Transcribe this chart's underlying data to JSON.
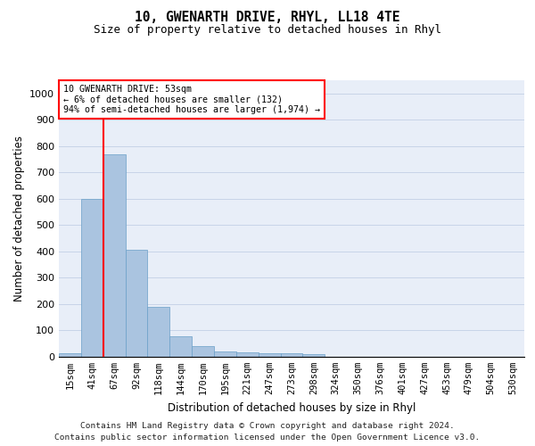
{
  "title": "10, GWENARTH DRIVE, RHYL, LL18 4TE",
  "subtitle": "Size of property relative to detached houses in Rhyl",
  "xlabel": "Distribution of detached houses by size in Rhyl",
  "ylabel": "Number of detached properties",
  "categories": [
    "15sqm",
    "41sqm",
    "67sqm",
    "92sqm",
    "118sqm",
    "144sqm",
    "170sqm",
    "195sqm",
    "221sqm",
    "247sqm",
    "273sqm",
    "298sqm",
    "324sqm",
    "350sqm",
    "376sqm",
    "401sqm",
    "427sqm",
    "453sqm",
    "479sqm",
    "504sqm",
    "530sqm"
  ],
  "values": [
    15,
    600,
    770,
    405,
    190,
    78,
    40,
    20,
    17,
    12,
    15,
    9,
    0,
    0,
    0,
    0,
    0,
    0,
    0,
    0,
    0
  ],
  "bar_color": "#aac4e0",
  "bar_edge_color": "#6a9fc8",
  "property_line_x": 1.5,
  "property_line_color": "red",
  "annotation_text": "10 GWENARTH DRIVE: 53sqm\n← 6% of detached houses are smaller (132)\n94% of semi-detached houses are larger (1,974) →",
  "ylim": [
    0,
    1050
  ],
  "yticks": [
    0,
    100,
    200,
    300,
    400,
    500,
    600,
    700,
    800,
    900,
    1000
  ],
  "grid_color": "#c8d4e8",
  "background_color": "#e8eef8",
  "footer_line1": "Contains HM Land Registry data © Crown copyright and database right 2024.",
  "footer_line2": "Contains public sector information licensed under the Open Government Licence v3.0."
}
